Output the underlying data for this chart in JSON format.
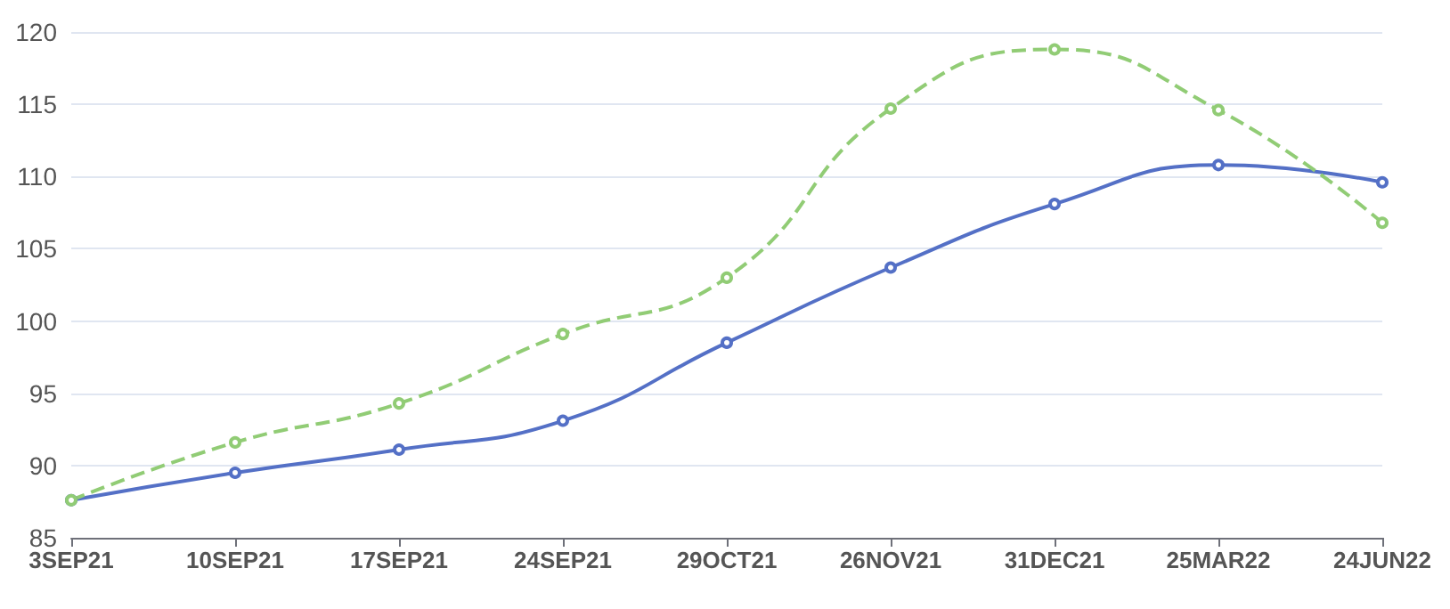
{
  "chart_data": {
    "type": "line",
    "categories": [
      "3SEP21",
      "10SEP21",
      "17SEP21",
      "24SEP21",
      "29OCT21",
      "26NOV21",
      "31DEC21",
      "25MAR22",
      "24JUN22"
    ],
    "series": [
      {
        "color": "#5470c6",
        "values": [
          87.6,
          89.5,
          91.1,
          93.1,
          98.5,
          103.7,
          108.1,
          110.8,
          109.6
        ]
      },
      {
        "color": "#91cc75",
        "line_style": "dashed",
        "values": [
          87.6,
          91.6,
          94.3,
          99.1,
          103.0,
          114.7,
          118.8,
          114.6,
          106.8
        ]
      }
    ],
    "ylim": [
      85,
      120
    ],
    "yticks": [
      85,
      90,
      95,
      100,
      105,
      110,
      115,
      120
    ],
    "grid": "y",
    "marker": "circle"
  }
}
